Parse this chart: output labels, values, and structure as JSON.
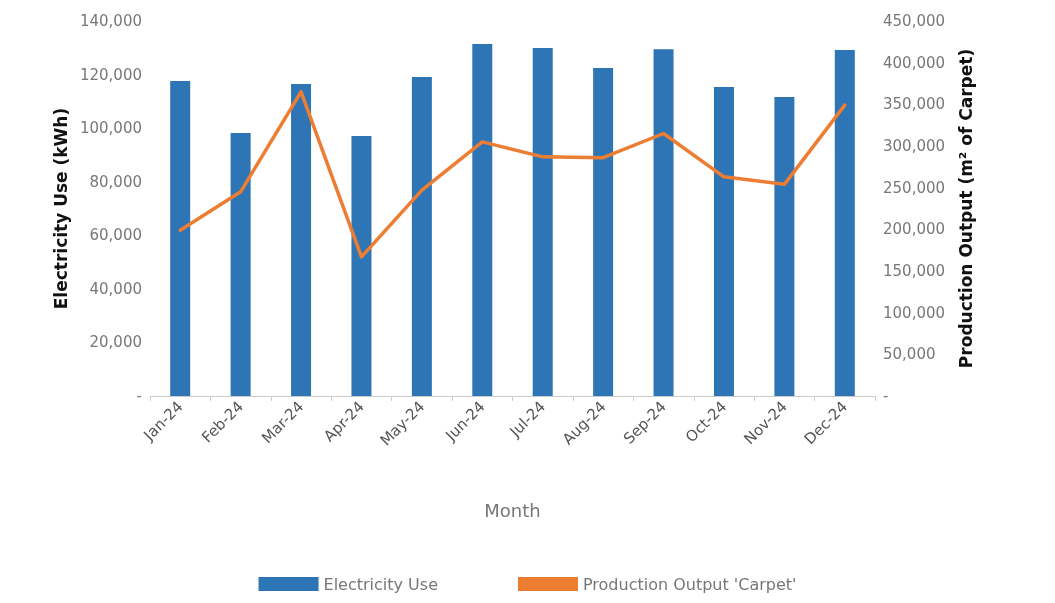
{
  "chart_data": {
    "type": "bar",
    "xlabel": "Month",
    "ylabel": "Electricity Use (kWh)",
    "y2label": "Production Output (m² of Carpet)",
    "categories": [
      "Jan-24",
      "Feb-24",
      "Mar-24",
      "Apr-24",
      "May-24",
      "Jun-24",
      "Jul-24",
      "Aug-24",
      "Sep-24",
      "Oct-24",
      "Nov-24",
      "Dec-24"
    ],
    "series": [
      {
        "name": "Electricity Use",
        "color": "#2e75b6",
        "values": [
          117600,
          98200,
          116500,
          97100,
          119100,
          131400,
          129900,
          122500,
          129500,
          115400,
          111600,
          129200
        ]
      },
      {
        "name": "Production Output 'Carpet'",
        "type": "line",
        "axis": "y2",
        "color": "#ed7d31",
        "values": [
          199000,
          245000,
          365000,
          167000,
          247000,
          305000,
          287000,
          286000,
          315000,
          263000,
          254000,
          349000
        ]
      }
    ],
    "ylim": [
      0,
      140000
    ],
    "yticks": [
      {
        "value": 0,
        "label": "-"
      },
      {
        "value": 20000,
        "label": "20,000"
      },
      {
        "value": 40000,
        "label": "40,000"
      },
      {
        "value": 60000,
        "label": "60,000"
      },
      {
        "value": 80000,
        "label": "80,000"
      },
      {
        "value": 100000,
        "label": "100,000"
      },
      {
        "value": 120000,
        "label": "120,000"
      },
      {
        "value": 140000,
        "label": "140,000"
      }
    ],
    "y2lim": [
      0,
      450000
    ],
    "y2ticks": [
      {
        "value": 0,
        "label": "-"
      },
      {
        "value": 50000,
        "label": "50,000"
      },
      {
        "value": 100000,
        "label": "100,000"
      },
      {
        "value": 150000,
        "label": "150,000"
      },
      {
        "value": 200000,
        "label": "200,000"
      },
      {
        "value": 250000,
        "label": "250,000"
      },
      {
        "value": 300000,
        "label": "300,000"
      },
      {
        "value": 350000,
        "label": "350,000"
      },
      {
        "value": 400000,
        "label": "400,000"
      },
      {
        "value": 450000,
        "label": "450,000"
      }
    ],
    "grid": false,
    "legend": "bottom",
    "marker": "none",
    "line_style": "solid"
  }
}
